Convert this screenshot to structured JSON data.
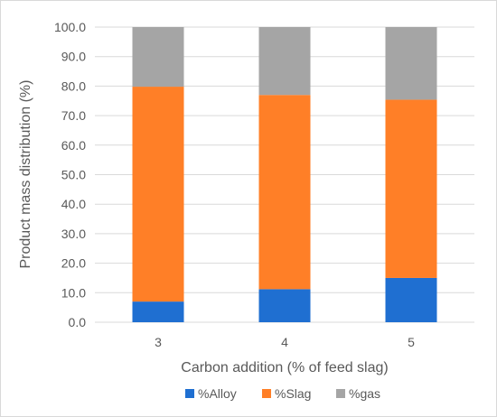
{
  "chart_data": {
    "type": "bar",
    "stacked": true,
    "categories": [
      "3",
      "4",
      "5"
    ],
    "series": [
      {
        "name": "%Alloy",
        "color": "#1f6fd1",
        "values": [
          7.0,
          11.2,
          15.0
        ]
      },
      {
        "name": "%Slag",
        "color": "#ff7f27",
        "values": [
          72.8,
          65.8,
          60.4
        ]
      },
      {
        "name": "%gas",
        "color": "#a5a5a5",
        "values": [
          20.2,
          23.0,
          24.6
        ]
      }
    ],
    "xlabel": "Carbon addition (% of feed slag)",
    "ylabel": "Product mass distribution (%)",
    "ylim": [
      0,
      100
    ],
    "yticks": [
      "0.0",
      "10.0",
      "20.0",
      "30.0",
      "40.0",
      "50.0",
      "60.0",
      "70.0",
      "80.0",
      "90.0",
      "100.0"
    ],
    "grid": true,
    "legend": "bottom"
  }
}
